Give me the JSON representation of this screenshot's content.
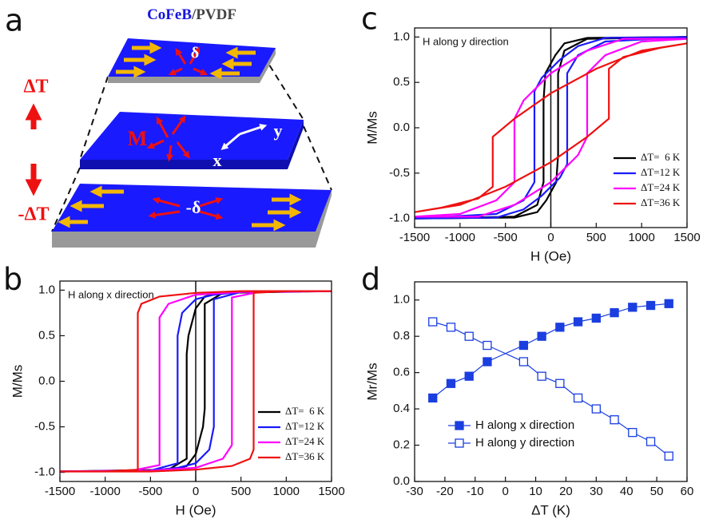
{
  "panel_labels": [
    "a",
    "b",
    "c",
    "d"
  ],
  "diagram": {
    "title_parts": [
      "CoFeB",
      "/",
      "PVDF"
    ],
    "heating_label": "ΔT",
    "cooling_label": "-ΔT",
    "top_label": "δ",
    "middle_labels": [
      "M",
      "x",
      "y"
    ],
    "bottom_label": "-δ"
  },
  "chart_data": [
    {
      "type": "line",
      "annotation": "H along x direction",
      "xlabel": "H (Oe)",
      "ylabel": "M/Ms",
      "xlim": [
        -1500,
        1500
      ],
      "xticks": [
        -1500,
        -1000,
        -500,
        0,
        500,
        1000,
        1500
      ],
      "ylim": [
        -1.1,
        1.1
      ],
      "yticks": [
        {
          "value": -1.0,
          "label": "-1.0"
        },
        {
          "value": -0.5,
          "label": "-0.5"
        },
        {
          "value": 0.0,
          "label": "0.0"
        },
        {
          "value": 0.5,
          "label": "0.5"
        },
        {
          "value": 1.0,
          "label": "1.0"
        }
      ],
      "zero_line": true,
      "legend": "lower right",
      "series": [
        {
          "name": "ΔT=  6 K",
          "color": "#000000",
          "x": [
            1500,
            300,
            100,
            0,
            -80,
            -100,
            -100,
            -300,
            -1500,
            -1500,
            -300,
            -100,
            0,
            80,
            100,
            100,
            300,
            1500
          ],
          "values": [
            0.99,
            0.98,
            0.93,
            0.8,
            0.5,
            0.3,
            -0.85,
            -0.97,
            -0.99,
            -0.99,
            -0.98,
            -0.93,
            -0.8,
            -0.5,
            -0.3,
            0.85,
            0.97,
            0.99
          ]
        },
        {
          "name": "ΔT=12 K",
          "color": "#1a1aff",
          "x": [
            1500,
            500,
            200,
            0,
            -150,
            -200,
            -200,
            -500,
            -1500,
            -1500,
            -500,
            -200,
            0,
            150,
            200,
            200,
            500,
            1500
          ],
          "values": [
            0.99,
            0.98,
            0.95,
            0.9,
            0.75,
            0.5,
            -0.9,
            -0.98,
            -0.99,
            -0.99,
            -0.98,
            -0.95,
            -0.9,
            -0.75,
            -0.5,
            0.9,
            0.98,
            0.99
          ]
        },
        {
          "name": "ΔT=24 K",
          "color": "#ff00ff",
          "x": [
            1500,
            500,
            0,
            -300,
            -400,
            -400,
            -700,
            -1500,
            -1500,
            -500,
            0,
            300,
            400,
            400,
            700,
            1500
          ],
          "values": [
            0.99,
            0.98,
            0.95,
            0.85,
            0.7,
            -0.92,
            -0.98,
            -0.99,
            -0.99,
            -0.98,
            -0.95,
            -0.85,
            -0.7,
            0.92,
            0.98,
            0.99
          ]
        },
        {
          "name": "ΔT=36 K",
          "color": "#ee1111",
          "x": [
            1500,
            500,
            0,
            -400,
            -600,
            -640,
            -640,
            -1000,
            -1500,
            -1500,
            -500,
            0,
            400,
            600,
            640,
            640,
            1000,
            1500
          ],
          "values": [
            0.99,
            0.99,
            0.97,
            0.93,
            0.85,
            0.75,
            -0.97,
            -0.99,
            -0.99,
            -0.99,
            -0.99,
            -0.97,
            -0.93,
            -0.85,
            -0.75,
            0.97,
            0.99,
            0.99
          ]
        }
      ]
    },
    {
      "type": "line",
      "annotation": "H along y direction",
      "xlabel": "H (Oe)",
      "ylabel": "M/Ms",
      "xlim": [
        -1500,
        1500
      ],
      "xticks": [
        -1500,
        -1000,
        -500,
        0,
        500,
        1000,
        1500
      ],
      "ylim": [
        -1.1,
        1.1
      ],
      "yticks": [
        {
          "value": -1.0,
          "label": "-1.0"
        },
        {
          "value": -0.5,
          "label": "-0.5"
        },
        {
          "value": 0.0,
          "label": "0.0"
        },
        {
          "value": 0.5,
          "label": "0.5"
        },
        {
          "value": 1.0,
          "label": "1.0"
        }
      ],
      "zero_line": true,
      "legend": "lower right",
      "series": [
        {
          "name": "ΔT=  6 K",
          "color": "#000000",
          "x": [
            1500,
            400,
            150,
            50,
            -60,
            -80,
            -80,
            -150,
            -400,
            -1500,
            -1500,
            -400,
            -150,
            -50,
            60,
            80,
            80,
            150,
            400,
            1500
          ],
          "values": [
            1.0,
            0.99,
            0.93,
            0.8,
            0.6,
            0.3,
            -0.6,
            -0.85,
            -0.98,
            -1.0,
            -1.0,
            -0.99,
            -0.93,
            -0.8,
            -0.6,
            -0.3,
            0.6,
            0.85,
            0.98,
            1.0
          ]
        },
        {
          "name": "ΔT=12 K",
          "color": "#1a1aff",
          "x": [
            1500,
            600,
            300,
            100,
            -100,
            -180,
            -180,
            -300,
            -600,
            -1500,
            -1500,
            -600,
            -300,
            -100,
            100,
            180,
            180,
            300,
            600,
            1500
          ],
          "values": [
            1.0,
            0.99,
            0.9,
            0.75,
            0.55,
            0.4,
            -0.6,
            -0.8,
            -0.95,
            -1.0,
            -1.0,
            -0.99,
            -0.9,
            -0.75,
            -0.55,
            -0.4,
            0.6,
            0.8,
            0.95,
            1.0
          ]
        },
        {
          "name": "ΔT=24 K",
          "color": "#ff00ff",
          "x": [
            1500,
            800,
            400,
            0,
            -300,
            -400,
            -400,
            -600,
            -1000,
            -1500,
            -1500,
            -800,
            -400,
            0,
            300,
            400,
            400,
            600,
            1000,
            1500
          ],
          "values": [
            0.98,
            0.98,
            0.85,
            0.6,
            0.3,
            0.1,
            -0.6,
            -0.8,
            -0.95,
            -0.98,
            -0.98,
            -0.98,
            -0.85,
            -0.6,
            -0.3,
            -0.1,
            0.6,
            0.8,
            0.95,
            0.98
          ]
        },
        {
          "name": "ΔT=36 K",
          "color": "#ee1111",
          "x": [
            1500,
            1000,
            500,
            0,
            -400,
            -640,
            -640,
            -800,
            -1200,
            -1500,
            -1500,
            -1000,
            -500,
            0,
            400,
            640,
            640,
            800,
            1200,
            1500
          ],
          "values": [
            0.93,
            0.85,
            0.65,
            0.38,
            0.1,
            -0.1,
            -0.65,
            -0.78,
            -0.88,
            -0.93,
            -0.93,
            -0.85,
            -0.65,
            -0.38,
            -0.1,
            0.1,
            0.65,
            0.78,
            0.88,
            0.93
          ]
        }
      ]
    },
    {
      "type": "line",
      "xlabel": "ΔT (K)",
      "ylabel": "Mr/Ms",
      "xlim": [
        -30,
        60
      ],
      "xticks": [
        -30,
        -20,
        -10,
        0,
        10,
        20,
        30,
        40,
        50,
        60
      ],
      "ylim": [
        0,
        1.1
      ],
      "yticks": [
        {
          "value": 0.0,
          "label": "0.0"
        },
        {
          "value": 0.2,
          "label": "0.2"
        },
        {
          "value": 0.4,
          "label": "0.4"
        },
        {
          "value": 0.6,
          "label": "0.6"
        },
        {
          "value": 0.8,
          "label": "0.8"
        },
        {
          "value": 1.0,
          "label": "1.0"
        }
      ],
      "legend": "lower left",
      "series": [
        {
          "name": "H along x direction",
          "color": "#1a3ee0",
          "marker": "filled-square",
          "x": [
            -24,
            -18,
            -12,
            -6,
            6,
            12,
            18,
            24,
            30,
            36,
            42,
            48,
            54
          ],
          "values": [
            0.46,
            0.54,
            0.58,
            0.66,
            0.75,
            0.8,
            0.85,
            0.88,
            0.9,
            0.93,
            0.96,
            0.97,
            0.98
          ]
        },
        {
          "name": "H along y direction",
          "color": "#1a3ee0",
          "marker": "open-square",
          "x": [
            -24,
            -18,
            -12,
            -6,
            6,
            12,
            18,
            24,
            30,
            36,
            42,
            48,
            54
          ],
          "values": [
            0.88,
            0.85,
            0.8,
            0.75,
            0.66,
            0.58,
            0.54,
            0.46,
            0.4,
            0.34,
            0.27,
            0.22,
            0.14
          ]
        }
      ]
    }
  ]
}
